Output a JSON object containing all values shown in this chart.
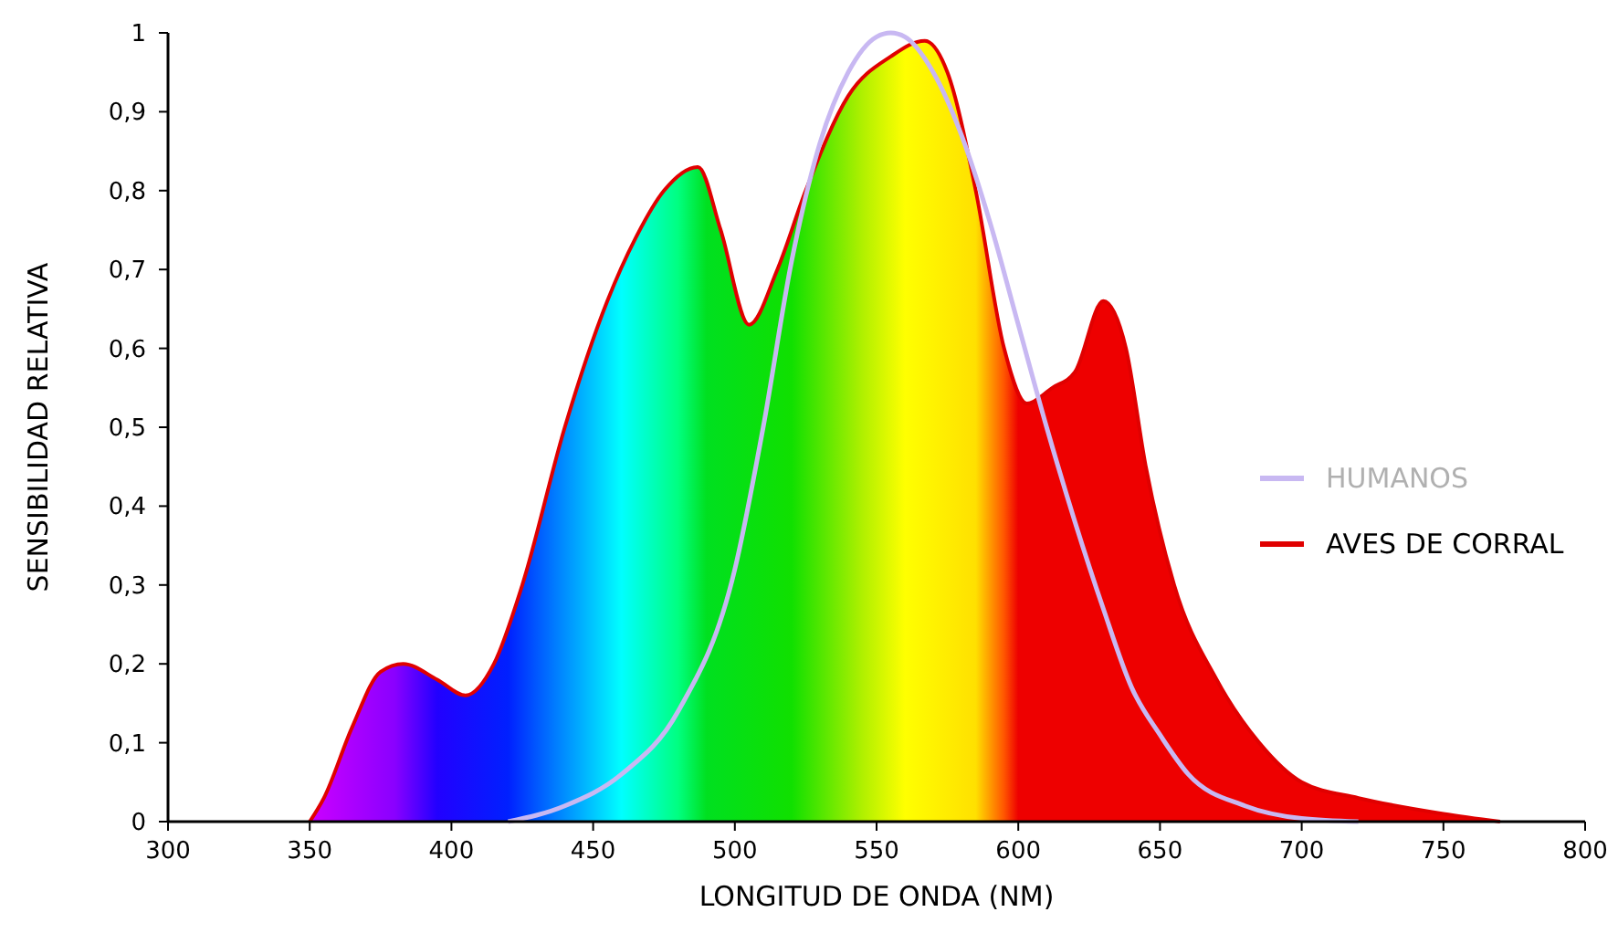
{
  "chart_data": {
    "type": "area",
    "xlabel": "LONGITUD DE ONDA (NM)",
    "ylabel": "SENSIBILIDAD RELATIVA",
    "xlim": [
      300,
      800
    ],
    "xticks": [
      300,
      350,
      400,
      450,
      500,
      550,
      600,
      650,
      700,
      750,
      800
    ],
    "ylim": [
      0,
      1
    ],
    "yticks": [
      0,
      {
        "value": 0.1,
        "label": "0,1"
      },
      {
        "value": 0.2,
        "label": "0,2"
      },
      {
        "value": 0.3,
        "label": "0,3"
      },
      {
        "value": 0.4,
        "label": "0,4"
      },
      {
        "value": 0.5,
        "label": "0,5"
      },
      {
        "value": 0.6,
        "label": "0,6"
      },
      {
        "value": 0.7,
        "label": "0,7"
      },
      {
        "value": 0.8,
        "label": "0,8"
      },
      {
        "value": 0.9,
        "label": "0,9"
      },
      1
    ],
    "grid": false,
    "legend": "right",
    "series": [
      {
        "name": "HUMANOS",
        "type": "line",
        "color": "#c8b8f2",
        "x": [
          420,
          440,
          460,
          480,
          500,
          510,
          520,
          530,
          540,
          550,
          555,
          560,
          570,
          580,
          590,
          600,
          610,
          620,
          630,
          640,
          650,
          660,
          680,
          700,
          720
        ],
        "values": [
          0,
          0.02,
          0.06,
          0.14,
          0.32,
          0.5,
          0.71,
          0.86,
          0.95,
          0.995,
          1,
          0.995,
          0.95,
          0.87,
          0.76,
          0.63,
          0.5,
          0.38,
          0.27,
          0.17,
          0.11,
          0.06,
          0.02,
          0.004,
          0
        ]
      },
      {
        "name": "AVES DE CORRAL",
        "color": "#e00000",
        "x": [
          350,
          355,
          365,
          375,
          383,
          395,
          405,
          415,
          425,
          440,
          455,
          465,
          475,
          487,
          495,
          505,
          515,
          525,
          540,
          555,
          567,
          575,
          585,
          595,
          603,
          612,
          620,
          630,
          638,
          645,
          655,
          670,
          685,
          700,
          720,
          750,
          770
        ],
        "values": [
          0,
          0.03,
          0.12,
          0.19,
          0.2,
          0.18,
          0.16,
          0.2,
          0.3,
          0.5,
          0.66,
          0.74,
          0.8,
          0.83,
          0.75,
          0.63,
          0.7,
          0.8,
          0.92,
          0.97,
          0.99,
          0.95,
          0.8,
          0.6,
          0.53,
          0.55,
          0.57,
          0.66,
          0.6,
          0.45,
          0.3,
          0.18,
          0.1,
          0.05,
          0.03,
          0.01,
          0
        ]
      }
    ]
  }
}
